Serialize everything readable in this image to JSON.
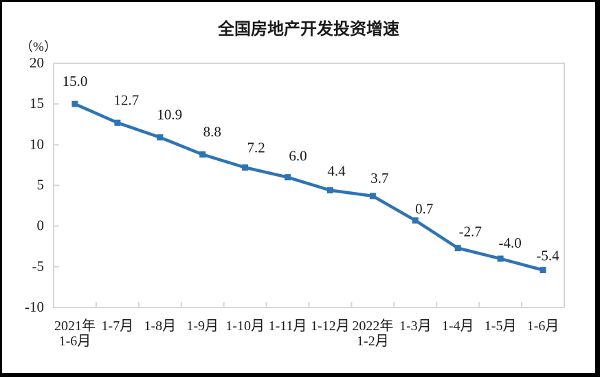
{
  "window": {
    "background_color": "#FFFFFF",
    "frame_color": "#000000"
  },
  "chart_data": {
    "type": "line",
    "title": "全国房地产开发投资增速",
    "unit_label": "（%）",
    "xlabel": "",
    "ylabel": "(%)",
    "categories": [
      [
        "2021年",
        "1-6月"
      ],
      [
        "1-7月"
      ],
      [
        "1-8月"
      ],
      [
        "1-9月"
      ],
      [
        "1-10月"
      ],
      [
        "1-11月"
      ],
      [
        "1-12月"
      ],
      [
        "2022年",
        "1-2月"
      ],
      [
        "1-3月"
      ],
      [
        "1-4月"
      ],
      [
        "1-5月"
      ],
      [
        "1-6月"
      ]
    ],
    "values": [
      15.0,
      12.7,
      10.9,
      8.8,
      7.2,
      6.0,
      4.4,
      3.7,
      0.7,
      -2.7,
      -4.0,
      -5.4
    ],
    "point_labels": [
      "15.0",
      "12.7",
      "10.9",
      "8.8",
      "7.2",
      "6.0",
      "4.4",
      "3.7",
      "0.7",
      "-2.7",
      "-4.0",
      "-5.4"
    ],
    "y_ticks": [
      20,
      15,
      10,
      5,
      0,
      -5,
      -10
    ],
    "y_tick_labels": [
      "20",
      "15",
      "10",
      "5",
      "0",
      "-5",
      "-10"
    ],
    "ylim": [
      -10,
      20
    ],
    "grid": false,
    "legend": "none",
    "line_color": "#2E74B5",
    "marker": "square",
    "axis_color": "#D6D6D6",
    "text_color": "#1A1A1A"
  }
}
